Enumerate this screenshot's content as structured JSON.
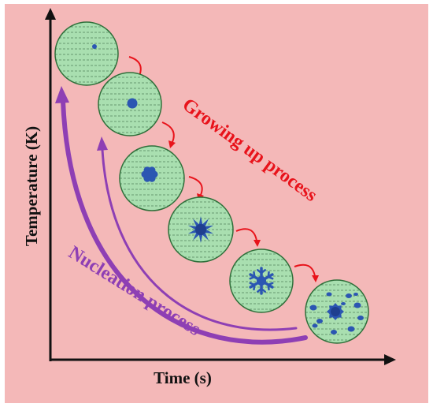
{
  "diagram": {
    "background_color": "#f4b8b8",
    "axis_color": "#111111",
    "x_axis_label": "Time (s)",
    "y_axis_label": "Temperature (K)",
    "growth_label": "Growing up process",
    "growth_color": "#e8131b",
    "nucleation_label": "Nucleation process",
    "nucleation_color": "#8e3fb4",
    "circle_fill": "#a9dfb0",
    "circle_stroke": "#2f6f3a",
    "crystal_color": "#2b56b2",
    "stages": [
      "nucleus",
      "cluster",
      "flower crystal",
      "star crystal",
      "snowflake crystal",
      "multiple crystals"
    ]
  }
}
